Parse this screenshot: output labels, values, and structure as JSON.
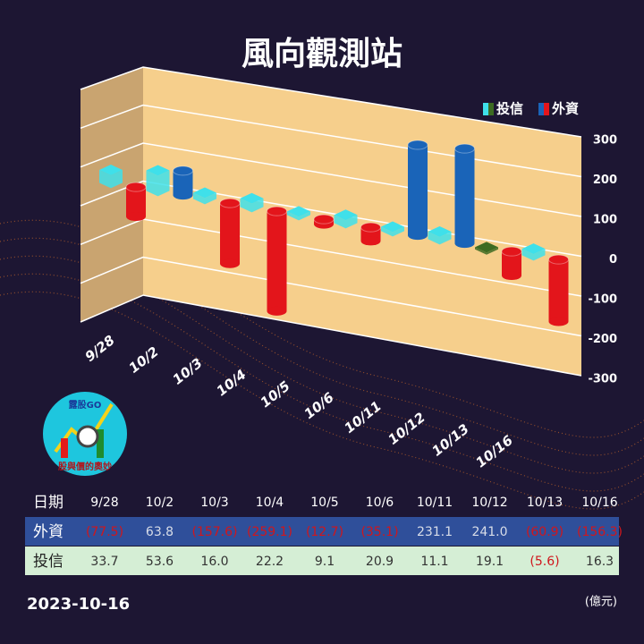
{
  "chart_data": {
    "type": "bar3d",
    "title": "風向觀測站",
    "category_label": "日期",
    "categories": [
      "9/28",
      "10/2",
      "10/3",
      "10/4",
      "10/5",
      "10/6",
      "10/11",
      "10/12",
      "10/13",
      "10/16"
    ],
    "series": [
      {
        "name": "外資",
        "color": "#1a64b8",
        "negative_color": "#e3151b",
        "values": [
          -77.5,
          63.8,
          -157.6,
          -259.1,
          -12.7,
          -35.1,
          231.1,
          241.0,
          -60.9,
          -156.3
        ],
        "value_labels": [
          "(77.5)",
          "63.8",
          "(157.6)",
          "(259.1)",
          "(12.7)",
          "(35.1)",
          "231.1",
          "241.0",
          "(60.9)",
          "(156.3)"
        ]
      },
      {
        "name": "投信",
        "color": "#3fe0ea",
        "negative_color": "#3d6b22",
        "values": [
          33.7,
          53.6,
          16.0,
          22.2,
          9.1,
          20.9,
          11.1,
          19.1,
          -5.6,
          16.3
        ],
        "value_labels": [
          "33.7",
          "53.6",
          "16.0",
          "22.2",
          "9.1",
          "20.9",
          "11.1",
          "19.1",
          "(5.6)",
          "16.3"
        ]
      }
    ],
    "ylim": [
      -300,
      300
    ],
    "yticks": [
      -300,
      -200,
      -100,
      0,
      100,
      200,
      300
    ],
    "grid": true,
    "legend": "top-right",
    "date": "2023-10-16",
    "unit": "(億元)",
    "logo": {
      "brand": "露股GO",
      "slogan": "股與價的奧妙"
    }
  }
}
